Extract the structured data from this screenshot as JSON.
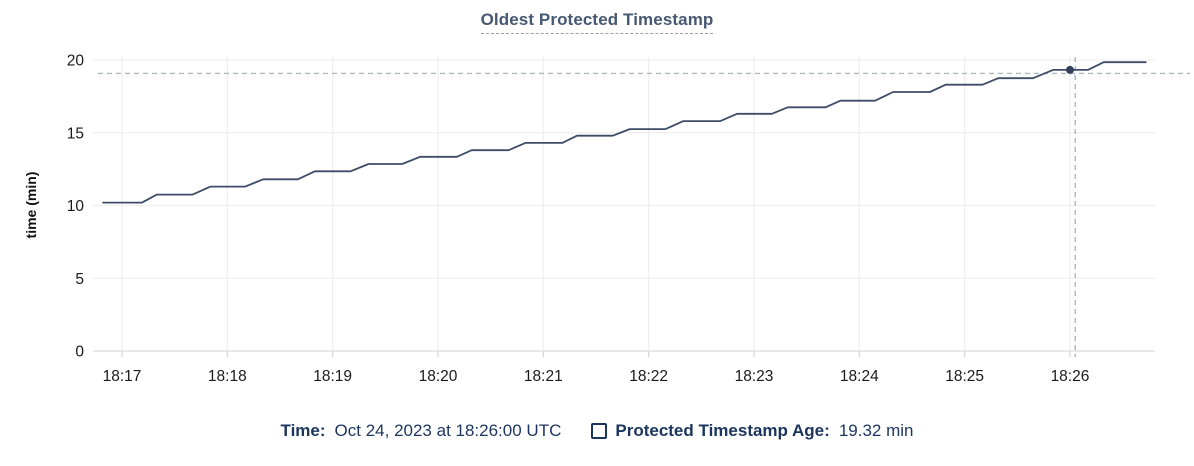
{
  "chart": {
    "title": "Oldest Protected Timestamp",
    "ylabel": "time (min)"
  },
  "legend": {
    "time_label": "Time:",
    "time_value": "Oct 24, 2023 at 18:26:00 UTC",
    "checkbox_icon": "checkbox-unchecked-icon",
    "series_label": "Protected Timestamp Age:",
    "series_value": "19.32 min"
  },
  "colors": {
    "title_text": "#475872",
    "title_underline": "#93a1b8",
    "legend_text": "#1b355e",
    "line": "#3f4c67",
    "dot": "#36415a",
    "crosshair": "#abb9c3",
    "grid": "#efefef",
    "baseline": "#e7e7e7",
    "tick": "#d9d9d9",
    "axis_text": "#1a1a1a"
  },
  "chart_data": {
    "type": "line",
    "title": "Oldest Protected Timestamp",
    "xlabel": "",
    "ylabel": "time (min)",
    "x_ticks": [
      "18:17",
      "18:18",
      "18:19",
      "18:20",
      "18:21",
      "18:22",
      "18:23",
      "18:24",
      "18:25",
      "18:26"
    ],
    "y_ticks": [
      0,
      5,
      10,
      15,
      20
    ],
    "ylim": [
      0,
      20
    ],
    "x_minutes_range": [
      -0.27,
      9.81
    ],
    "grid": "light-horizontal-and-vertical",
    "legend_position": "bottom-center",
    "series": [
      {
        "name": "Protected Timestamp Age",
        "unit": "min",
        "style": "staircase",
        "points_minutes_from_1817_vs_min": [
          [
            -0.18,
            10.2
          ],
          [
            0.19,
            10.2
          ],
          [
            0.33,
            10.75
          ],
          [
            0.67,
            10.75
          ],
          [
            0.84,
            11.3
          ],
          [
            1.17,
            11.3
          ],
          [
            1.34,
            11.8
          ],
          [
            1.67,
            11.8
          ],
          [
            1.83,
            12.35
          ],
          [
            2.17,
            12.35
          ],
          [
            2.34,
            12.85
          ],
          [
            2.66,
            12.85
          ],
          [
            2.83,
            13.35
          ],
          [
            3.18,
            13.35
          ],
          [
            3.32,
            13.8
          ],
          [
            3.67,
            13.8
          ],
          [
            3.83,
            14.3
          ],
          [
            4.18,
            14.3
          ],
          [
            4.32,
            14.8
          ],
          [
            4.66,
            14.8
          ],
          [
            4.82,
            15.25
          ],
          [
            5.16,
            15.25
          ],
          [
            5.33,
            15.8
          ],
          [
            5.68,
            15.8
          ],
          [
            5.84,
            16.3
          ],
          [
            6.17,
            16.3
          ],
          [
            6.32,
            16.75
          ],
          [
            6.68,
            16.75
          ],
          [
            6.82,
            17.2
          ],
          [
            7.15,
            17.2
          ],
          [
            7.32,
            17.8
          ],
          [
            7.67,
            17.8
          ],
          [
            7.82,
            18.3
          ],
          [
            8.17,
            18.3
          ],
          [
            8.32,
            18.75
          ],
          [
            8.65,
            18.75
          ],
          [
            8.84,
            19.32
          ],
          [
            9.17,
            19.32
          ],
          [
            9.32,
            19.85
          ],
          [
            9.72,
            19.85
          ]
        ]
      }
    ],
    "hover": {
      "time": "18:26:00",
      "x_minutes": 9.0,
      "value": 19.32,
      "crosshair_x_minutes": 9.05
    }
  }
}
